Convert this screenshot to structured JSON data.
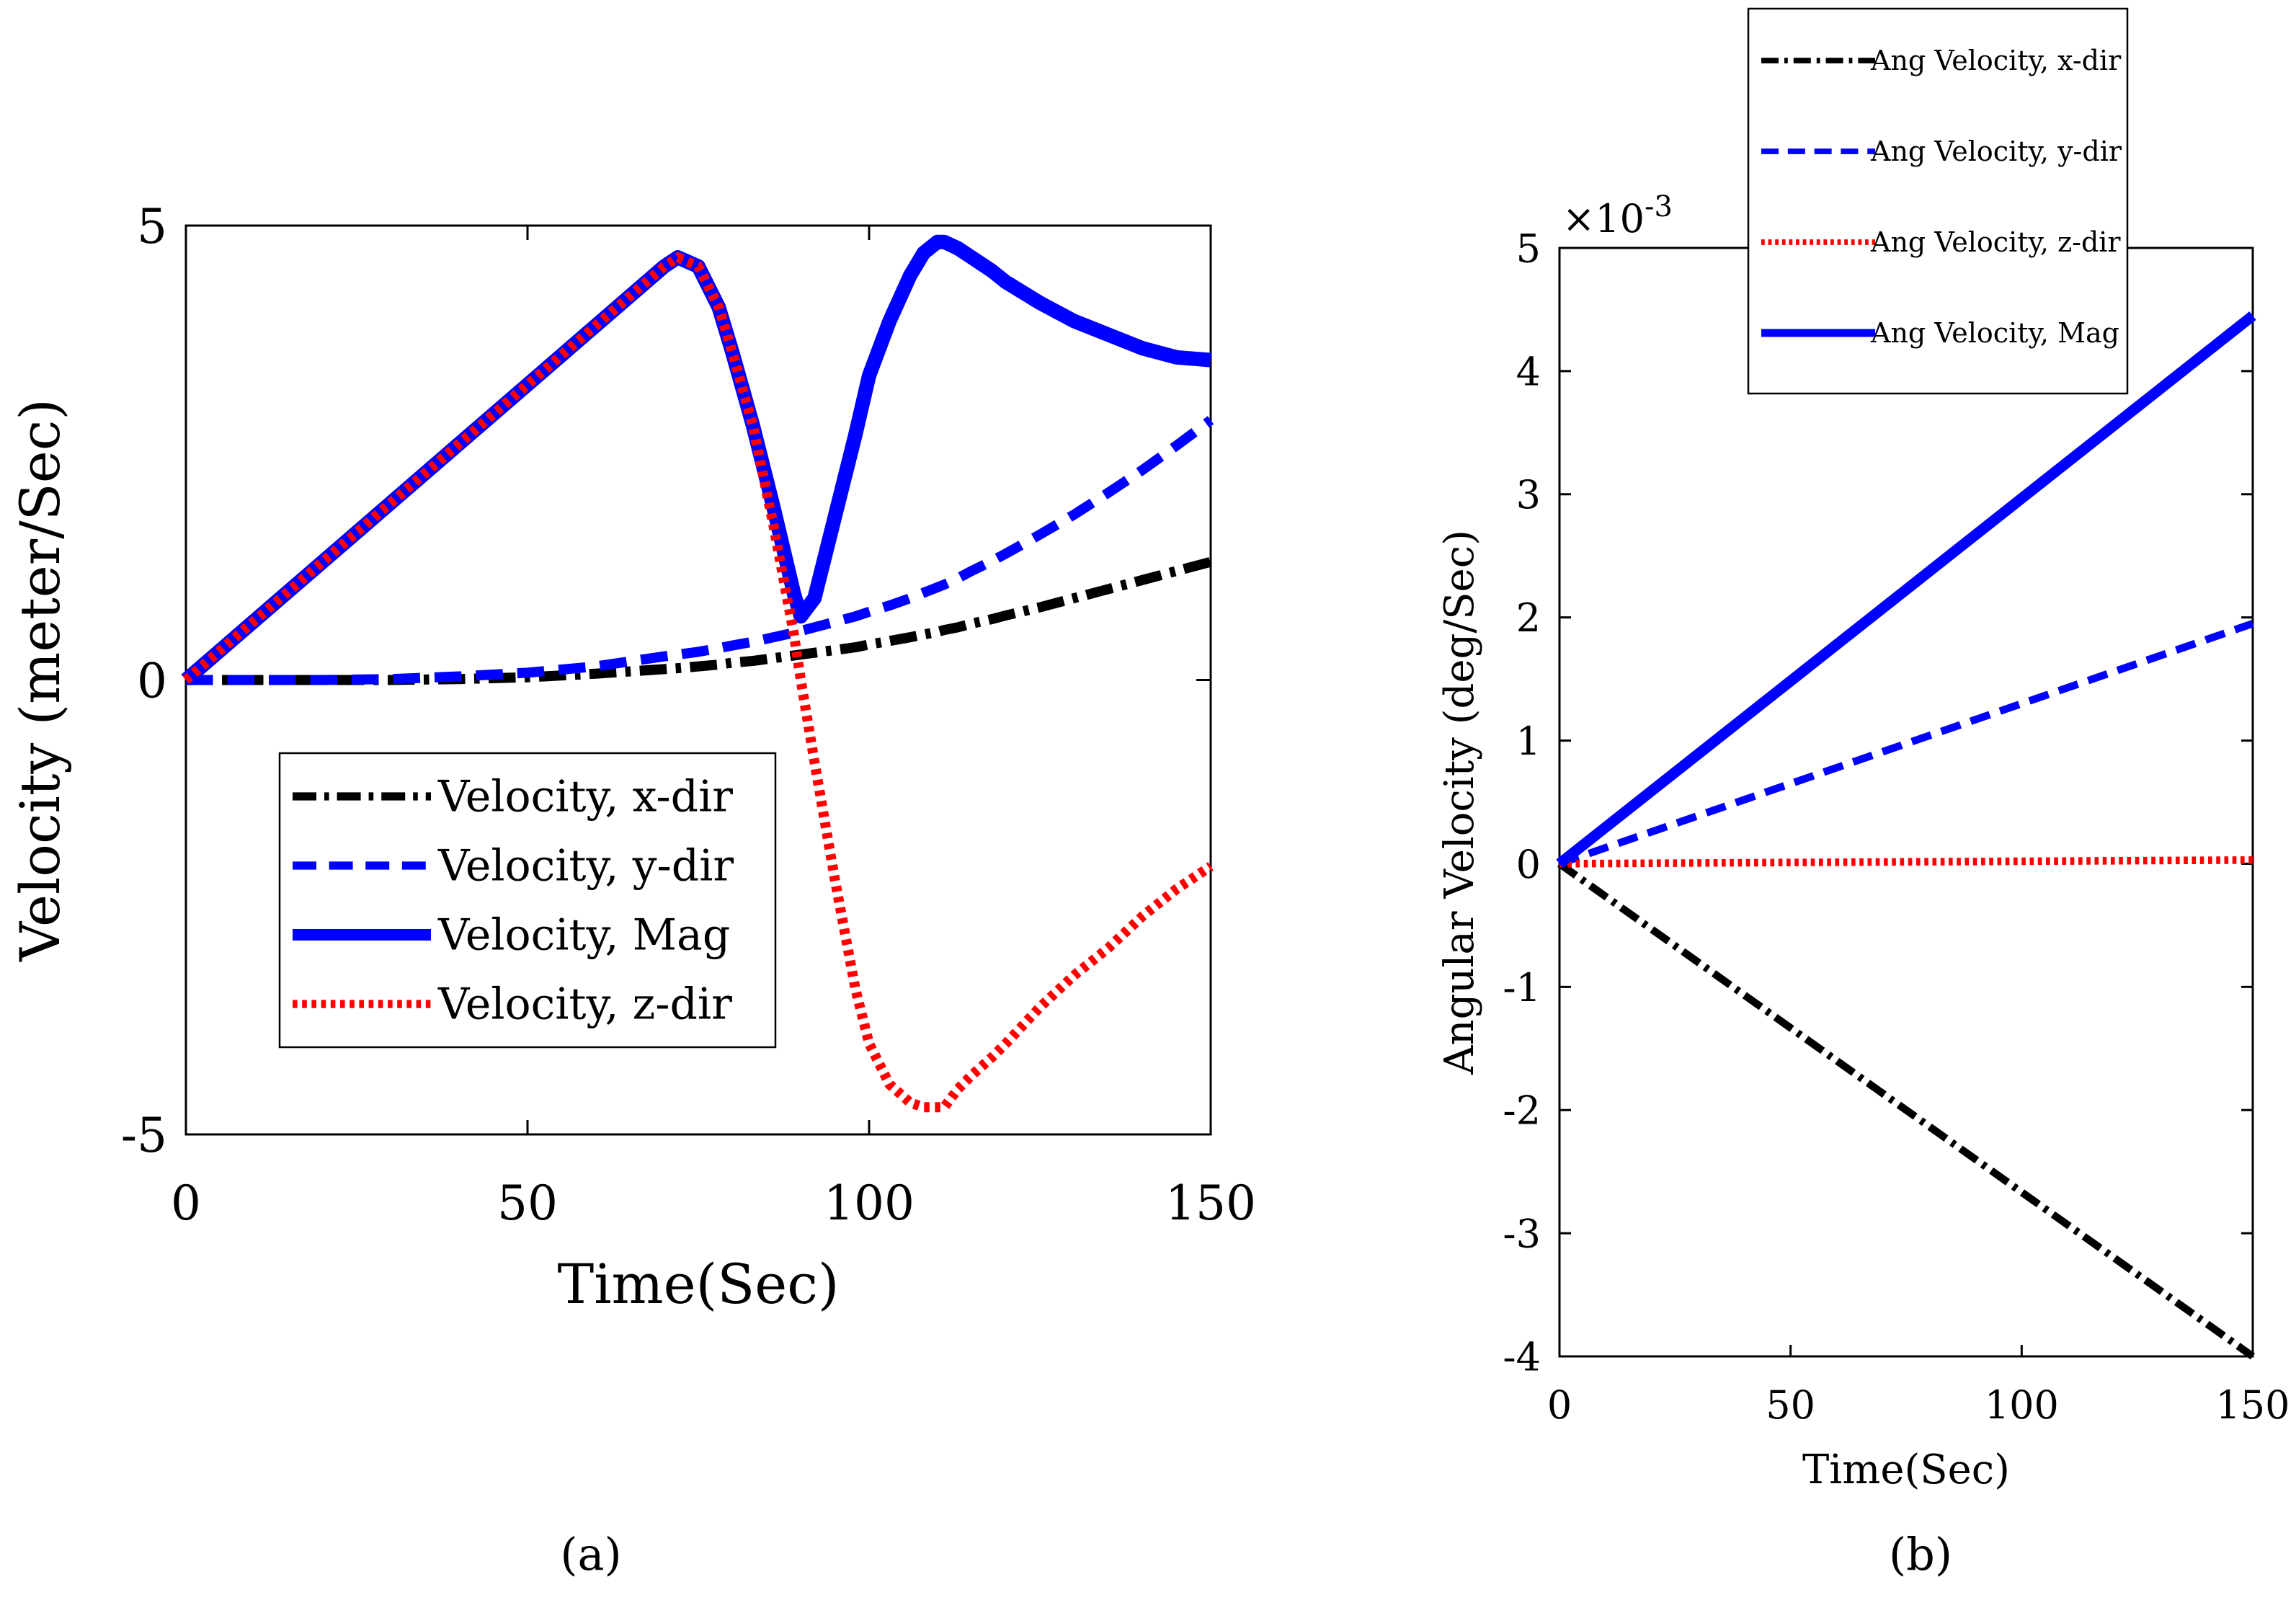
{
  "figure": {
    "caption_a": "(a)",
    "caption_b": "(b)"
  },
  "chart_data": [
    {
      "id": "a",
      "type": "line",
      "title": "",
      "xlabel": "Time(Sec)",
      "ylabel": "Velocity (meter/Sec)",
      "xlim": [
        0,
        150
      ],
      "ylim": [
        -5,
        5
      ],
      "xticks": [
        0,
        50,
        100,
        150
      ],
      "yticks": [
        -5,
        0,
        5
      ],
      "xtick_labels": [
        "0",
        "50",
        "100",
        "150"
      ],
      "ytick_labels": [
        "-5",
        "0",
        "5"
      ],
      "grid": false,
      "legend_position": "lower-left",
      "x": [
        0,
        10,
        20,
        30,
        40,
        50,
        60,
        70,
        72,
        75,
        78,
        80,
        83,
        86,
        89,
        90,
        92,
        95,
        98,
        100,
        103,
        106,
        108,
        110,
        111,
        113,
        115,
        118,
        120,
        125,
        130,
        135,
        140,
        145,
        150
      ],
      "series": [
        {
          "name": "Velocity, x-dir",
          "color": "#000000",
          "style": "dashdot",
          "values": [
            0,
            0,
            0,
            0,
            0.01,
            0.03,
            0.07,
            0.12,
            0.13,
            0.15,
            0.17,
            0.19,
            0.21,
            0.24,
            0.27,
            0.28,
            0.3,
            0.33,
            0.36,
            0.39,
            0.43,
            0.47,
            0.5,
            0.53,
            0.55,
            0.58,
            0.62,
            0.67,
            0.71,
            0.8,
            0.9,
            1,
            1.1,
            1.2,
            1.3
          ]
        },
        {
          "name": "Velocity, y-dir",
          "color": "#0000ff",
          "style": "dashed",
          "values": [
            0,
            0,
            0,
            0.01,
            0.04,
            0.08,
            0.15,
            0.26,
            0.28,
            0.31,
            0.35,
            0.38,
            0.42,
            0.47,
            0.52,
            0.54,
            0.58,
            0.64,
            0.7,
            0.75,
            0.82,
            0.9,
            0.96,
            1.02,
            1.05,
            1.12,
            1.2,
            1.31,
            1.39,
            1.6,
            1.82,
            2.06,
            2.31,
            2.58,
            2.86
          ]
        },
        {
          "name": "Velocity, Mag",
          "color": "#0000ff",
          "style": "solid",
          "values": [
            0,
            0.65,
            1.3,
            1.95,
            2.6,
            3.25,
            3.9,
            4.55,
            4.65,
            4.55,
            4.1,
            3.6,
            2.8,
            1.9,
            0.95,
            0.7,
            0.9,
            1.8,
            2.7,
            3.35,
            3.95,
            4.45,
            4.7,
            4.82,
            4.82,
            4.75,
            4.65,
            4.5,
            4.38,
            4.15,
            3.95,
            3.8,
            3.65,
            3.55,
            3.52
          ]
        },
        {
          "name": "Velocity, z-dir",
          "color": "#ff0000",
          "style": "dotted",
          "values": [
            0,
            0.65,
            1.3,
            1.95,
            2.6,
            3.25,
            3.9,
            4.55,
            4.65,
            4.55,
            4.1,
            3.6,
            2.8,
            1.7,
            0.5,
            0,
            -0.9,
            -2.2,
            -3.4,
            -4,
            -4.45,
            -4.65,
            -4.7,
            -4.7,
            -4.7,
            -4.5,
            -4.35,
            -4.15,
            -4,
            -3.6,
            -3.25,
            -2.95,
            -2.6,
            -2.3,
            -2.05
          ]
        }
      ]
    },
    {
      "id": "b",
      "type": "line",
      "title": "",
      "xlabel": "Time(Sec)",
      "ylabel": "Angular Velocity (deg/Sec)",
      "exponent_label": "×10",
      "exponent_power": "-3",
      "xlim": [
        0,
        150
      ],
      "ylim": [
        -4,
        5
      ],
      "xticks": [
        0,
        50,
        100,
        150
      ],
      "yticks": [
        -4,
        -3,
        -2,
        -1,
        0,
        1,
        2,
        3,
        4,
        5
      ],
      "xtick_labels": [
        "0",
        "50",
        "100",
        "150"
      ],
      "ytick_labels": [
        "-4",
        "-3",
        "-2",
        "-1",
        "0",
        "1",
        "2",
        "3",
        "4",
        "5"
      ],
      "grid": false,
      "legend_position": "top, above axes",
      "x": [
        0,
        150
      ],
      "series": [
        {
          "name": "Ang Velocity, x-dir",
          "color": "#000000",
          "style": "dashdot",
          "values": [
            0,
            -4
          ]
        },
        {
          "name": "Ang Velocity, y-dir",
          "color": "#0000ff",
          "style": "dashed",
          "values": [
            0,
            1.95
          ]
        },
        {
          "name": "Ang Velocity, z-dir",
          "color": "#ff0000",
          "style": "dotted",
          "values": [
            0,
            0.03
          ]
        },
        {
          "name": "Ang Velocity, Mag",
          "color": "#0000ff",
          "style": "solid",
          "values": [
            0,
            4.45
          ]
        }
      ]
    }
  ]
}
